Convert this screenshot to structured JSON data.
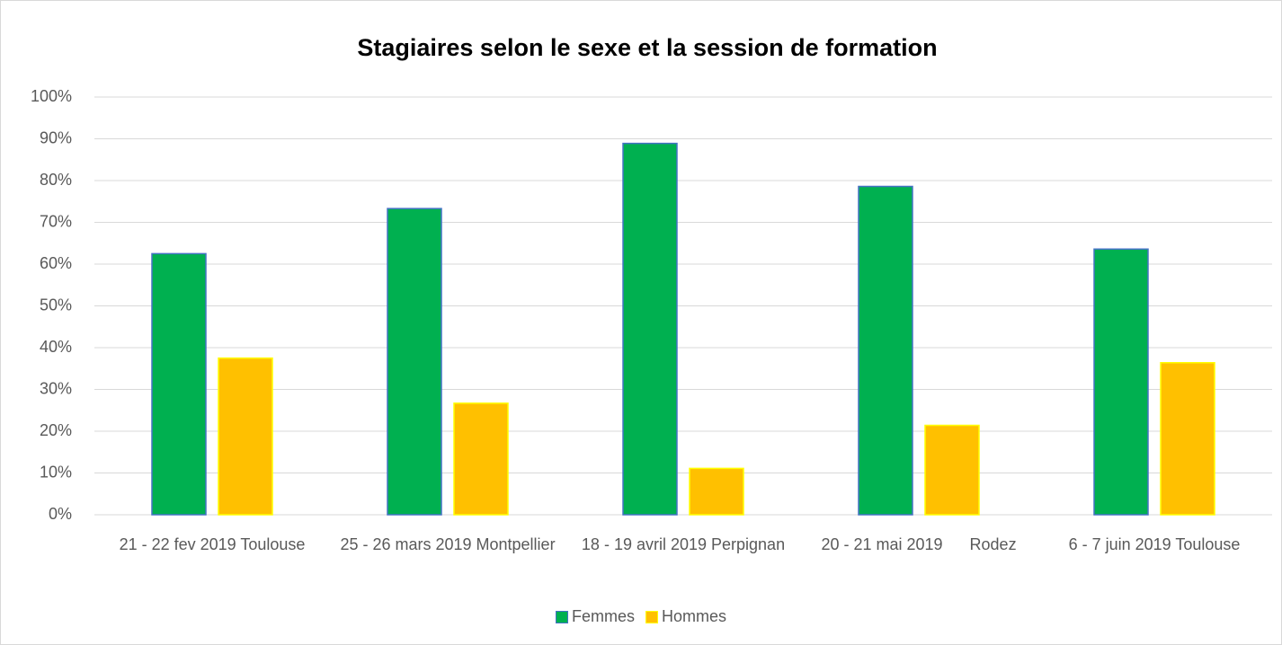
{
  "chart_data": {
    "type": "bar",
    "title": "Stagiaires selon le sexe et la session de formation",
    "categories": [
      "21 - 22 fev 2019 Toulouse",
      "25 - 26 mars 2019 Montpellier",
      "18 - 19 avril 2019 Perpignan",
      "20 - 21 mai 2019      Rodez",
      "6 - 7 juin 2019 Toulouse"
    ],
    "series": [
      {
        "name": "Femmes",
        "color": "#00b050",
        "values": [
          62.5,
          73.3,
          88.9,
          78.6,
          63.6
        ]
      },
      {
        "name": "Hommes",
        "color": "#ffc000",
        "values": [
          37.5,
          26.7,
          11.1,
          21.4,
          36.4
        ]
      }
    ],
    "ylim": [
      0,
      100
    ],
    "yticks": [
      {
        "value": 0,
        "label": "0%"
      },
      {
        "value": 10,
        "label": "10%"
      },
      {
        "value": 20,
        "label": "20%"
      },
      {
        "value": 30,
        "label": "30%"
      },
      {
        "value": 40,
        "label": "40%"
      },
      {
        "value": 50,
        "label": "50%"
      },
      {
        "value": 60,
        "label": "60%"
      },
      {
        "value": 70,
        "label": "70%"
      },
      {
        "value": 80,
        "label": "80%"
      },
      {
        "value": 90,
        "label": "90%"
      },
      {
        "value": 100,
        "label": "100%"
      }
    ],
    "grid": true,
    "legend": "bottom"
  }
}
